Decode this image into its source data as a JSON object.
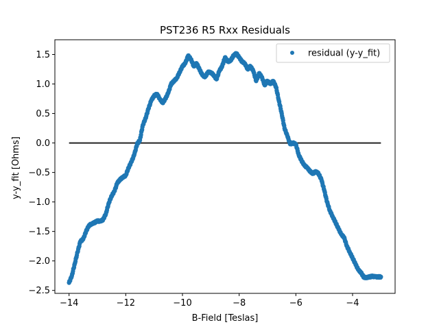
{
  "chart_data": {
    "type": "scatter",
    "title": "PST236 R5 Rxx Residuals",
    "xlabel": "B-Field [Teslas]",
    "ylabel": "y-y_fit [Ohms]",
    "xlim": [
      -14.5,
      -2.5
    ],
    "ylim": [
      -2.55,
      1.75
    ],
    "xticks": [
      -14,
      -12,
      -10,
      -8,
      -6,
      -4
    ],
    "xtick_labels": [
      "−14",
      "−12",
      "−10",
      "−8",
      "−6",
      "−4"
    ],
    "yticks": [
      -2.5,
      -2.0,
      -1.5,
      -1.0,
      -0.5,
      0.0,
      0.5,
      1.0,
      1.5
    ],
    "ytick_labels": [
      "−2.5",
      "−2.0",
      "−1.5",
      "−1.0",
      "−0.5",
      "0.0",
      "0.5",
      "1.0",
      "1.5"
    ],
    "grid": false,
    "legend_position": "top-right",
    "series": [
      {
        "name": "residual (y-y_fit)",
        "color": "#1f77b4",
        "x": [
          -14.0,
          -13.9,
          -13.8,
          -13.7,
          -13.6,
          -13.5,
          -13.4,
          -13.3,
          -13.2,
          -13.1,
          -13.0,
          -12.9,
          -12.8,
          -12.7,
          -12.6,
          -12.5,
          -12.4,
          -12.3,
          -12.2,
          -12.1,
          -12.0,
          -11.9,
          -11.8,
          -11.7,
          -11.6,
          -11.5,
          -11.4,
          -11.3,
          -11.2,
          -11.1,
          -11.0,
          -10.9,
          -10.8,
          -10.7,
          -10.6,
          -10.5,
          -10.4,
          -10.3,
          -10.2,
          -10.1,
          -10.0,
          -9.9,
          -9.8,
          -9.7,
          -9.6,
          -9.5,
          -9.4,
          -9.3,
          -9.2,
          -9.1,
          -9.0,
          -8.9,
          -8.8,
          -8.7,
          -8.6,
          -8.5,
          -8.4,
          -8.3,
          -8.2,
          -8.1,
          -8.0,
          -7.9,
          -7.8,
          -7.7,
          -7.6,
          -7.5,
          -7.4,
          -7.3,
          -7.2,
          -7.1,
          -7.0,
          -6.9,
          -6.8,
          -6.7,
          -6.6,
          -6.5,
          -6.4,
          -6.3,
          -6.2,
          -6.1,
          -6.0,
          -5.9,
          -5.8,
          -5.7,
          -5.6,
          -5.5,
          -5.4,
          -5.3,
          -5.2,
          -5.1,
          -5.0,
          -4.9,
          -4.8,
          -4.7,
          -4.6,
          -4.5,
          -4.4,
          -4.3,
          -4.2,
          -4.1,
          -4.0,
          -3.9,
          -3.8,
          -3.7,
          -3.6,
          -3.5,
          -3.4,
          -3.3,
          -3.2,
          -3.1,
          -3.0
        ],
        "y": [
          -2.37,
          -2.25,
          -2.05,
          -1.85,
          -1.67,
          -1.63,
          -1.5,
          -1.4,
          -1.37,
          -1.35,
          -1.32,
          -1.33,
          -1.3,
          -1.2,
          -1.02,
          -0.9,
          -0.82,
          -0.68,
          -0.62,
          -0.58,
          -0.55,
          -0.42,
          -0.32,
          -0.2,
          -0.02,
          0.05,
          0.3,
          0.42,
          0.58,
          0.72,
          0.8,
          0.83,
          0.75,
          0.68,
          0.75,
          0.85,
          1.0,
          1.05,
          1.1,
          1.2,
          1.3,
          1.35,
          1.48,
          1.42,
          1.3,
          1.35,
          1.25,
          1.15,
          1.12,
          1.2,
          1.2,
          1.15,
          1.08,
          1.22,
          1.3,
          1.45,
          1.38,
          1.4,
          1.48,
          1.52,
          1.45,
          1.38,
          1.35,
          1.25,
          1.3,
          1.22,
          1.05,
          1.18,
          1.12,
          0.98,
          1.05,
          1.0,
          1.05,
          0.95,
          0.72,
          0.5,
          0.25,
          0.12,
          -0.02,
          0.0,
          -0.02,
          -0.2,
          -0.3,
          -0.38,
          -0.42,
          -0.48,
          -0.52,
          -0.48,
          -0.52,
          -0.62,
          -0.8,
          -1.0,
          -1.15,
          -1.25,
          -1.35,
          -1.45,
          -1.55,
          -1.6,
          -1.75,
          -1.85,
          -1.95,
          -2.05,
          -2.15,
          -2.2,
          -2.28,
          -2.28,
          -2.27,
          -2.26,
          -2.27,
          -2.27,
          -2.27
        ]
      }
    ],
    "reference_line": {
      "y": 0.0,
      "x_range": [
        -14.0,
        -3.0
      ],
      "color": "#222222"
    }
  }
}
